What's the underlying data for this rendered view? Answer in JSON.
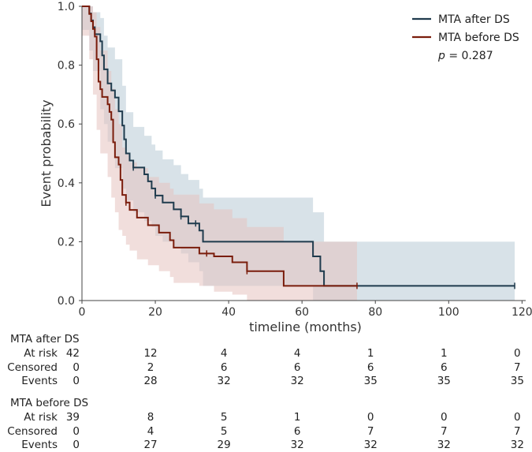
{
  "chart_data": {
    "type": "line",
    "subtype": "kaplan-meier",
    "title": "",
    "xlabel": "timeline (months)",
    "ylabel": "Event probability",
    "xlim": [
      0,
      121
    ],
    "ylim": [
      0,
      1.0
    ],
    "xticks": [
      0,
      20,
      40,
      60,
      80,
      100,
      120
    ],
    "yticks": [
      0.0,
      0.2,
      0.4,
      0.6,
      0.8,
      1.0
    ],
    "xtick_labels": [
      "0",
      "20",
      "40",
      "60",
      "80",
      "100",
      "120"
    ],
    "ytick_labels": [
      "0.0",
      "0.2",
      "0.4",
      "0.6",
      "0.8",
      "1.0"
    ],
    "legend_position": "top-right",
    "pvalue": {
      "label": "p",
      "text": " = 0.287"
    },
    "series": [
      {
        "name": "MTA after DS",
        "color": "#1f3b4d",
        "band_color": "#b8cbd6",
        "steps": [
          [
            0,
            1.0
          ],
          [
            2,
            0.976
          ],
          [
            2.5,
            0.952
          ],
          [
            3,
            0.929
          ],
          [
            3.5,
            0.905
          ],
          [
            5,
            0.881
          ],
          [
            5.5,
            0.833
          ],
          [
            6,
            0.786
          ],
          [
            7,
            0.738
          ],
          [
            8,
            0.714
          ],
          [
            9,
            0.69
          ],
          [
            10,
            0.643
          ],
          [
            11,
            0.595
          ],
          [
            11.5,
            0.548
          ],
          [
            12,
            0.5
          ],
          [
            13,
            0.476
          ],
          [
            14,
            0.452
          ],
          [
            17,
            0.429
          ],
          [
            18,
            0.405
          ],
          [
            19,
            0.381
          ],
          [
            20,
            0.357
          ],
          [
            22,
            0.333
          ],
          [
            25,
            0.31
          ],
          [
            27,
            0.286
          ],
          [
            29,
            0.262
          ],
          [
            32,
            0.238
          ],
          [
            33,
            0.2
          ],
          [
            63,
            0.15
          ],
          [
            65,
            0.1
          ],
          [
            66,
            0.05
          ],
          [
            118,
            0.05
          ]
        ],
        "lower": [
          [
            0,
            1.0
          ],
          [
            2,
            0.92
          ],
          [
            3,
            0.85
          ],
          [
            5,
            0.78
          ],
          [
            6,
            0.65
          ],
          [
            7,
            0.6
          ],
          [
            9,
            0.54
          ],
          [
            11,
            0.45
          ],
          [
            12,
            0.38
          ],
          [
            14,
            0.34
          ],
          [
            17,
            0.3
          ],
          [
            19,
            0.27
          ],
          [
            20,
            0.25
          ],
          [
            22,
            0.22
          ],
          [
            25,
            0.2
          ],
          [
            27,
            0.18
          ],
          [
            29,
            0.16
          ],
          [
            32,
            0.13
          ],
          [
            33,
            0.1
          ],
          [
            63,
            0.05
          ],
          [
            66,
            0.0
          ],
          [
            118,
            0.0
          ]
        ],
        "upper": [
          [
            0,
            1.0
          ],
          [
            2,
            1.0
          ],
          [
            3,
            0.98
          ],
          [
            5,
            0.96
          ],
          [
            6,
            0.9
          ],
          [
            7,
            0.86
          ],
          [
            9,
            0.82
          ],
          [
            11,
            0.73
          ],
          [
            12,
            0.64
          ],
          [
            14,
            0.59
          ],
          [
            17,
            0.56
          ],
          [
            19,
            0.53
          ],
          [
            20,
            0.51
          ],
          [
            22,
            0.48
          ],
          [
            25,
            0.46
          ],
          [
            27,
            0.43
          ],
          [
            29,
            0.41
          ],
          [
            32,
            0.38
          ],
          [
            33,
            0.35
          ],
          [
            63,
            0.3
          ],
          [
            66,
            0.2
          ],
          [
            118,
            0.2
          ]
        ],
        "censored_x": [
          14,
          20,
          27,
          31,
          118
        ]
      },
      {
        "name": "MTA before DS",
        "color": "#7a1d0c",
        "band_color": "#e6c3bf",
        "steps": [
          [
            0,
            1.0
          ],
          [
            2,
            0.974
          ],
          [
            2.5,
            0.949
          ],
          [
            3,
            0.923
          ],
          [
            3.5,
            0.897
          ],
          [
            4,
            0.82
          ],
          [
            4.5,
            0.744
          ],
          [
            5,
            0.718
          ],
          [
            5.5,
            0.692
          ],
          [
            7,
            0.667
          ],
          [
            7.5,
            0.641
          ],
          [
            8,
            0.615
          ],
          [
            8.5,
            0.538
          ],
          [
            9,
            0.487
          ],
          [
            10,
            0.462
          ],
          [
            10.5,
            0.41
          ],
          [
            11,
            0.359
          ],
          [
            12,
            0.333
          ],
          [
            13,
            0.308
          ],
          [
            15,
            0.282
          ],
          [
            18,
            0.256
          ],
          [
            21,
            0.231
          ],
          [
            24,
            0.205
          ],
          [
            25,
            0.18
          ],
          [
            32,
            0.16
          ],
          [
            36,
            0.15
          ],
          [
            41,
            0.13
          ],
          [
            45,
            0.1
          ],
          [
            55,
            0.05
          ],
          [
            75,
            0.05
          ]
        ],
        "lower": [
          [
            0,
            1.0
          ],
          [
            2,
            0.9
          ],
          [
            3,
            0.82
          ],
          [
            4,
            0.7
          ],
          [
            5,
            0.58
          ],
          [
            7,
            0.5
          ],
          [
            8,
            0.42
          ],
          [
            9,
            0.35
          ],
          [
            10,
            0.3
          ],
          [
            11,
            0.24
          ],
          [
            12,
            0.22
          ],
          [
            13,
            0.19
          ],
          [
            15,
            0.17
          ],
          [
            18,
            0.14
          ],
          [
            21,
            0.12
          ],
          [
            24,
            0.1
          ],
          [
            25,
            0.08
          ],
          [
            32,
            0.06
          ],
          [
            36,
            0.05
          ],
          [
            41,
            0.03
          ],
          [
            45,
            0.02
          ],
          [
            55,
            0.0
          ],
          [
            75,
            0.0
          ]
        ],
        "upper": [
          [
            0,
            1.0
          ],
          [
            2,
            1.0
          ],
          [
            3,
            0.98
          ],
          [
            4,
            0.93
          ],
          [
            5,
            0.85
          ],
          [
            7,
            0.78
          ],
          [
            8,
            0.72
          ],
          [
            9,
            0.65
          ],
          [
            10,
            0.6
          ],
          [
            11,
            0.52
          ],
          [
            12,
            0.5
          ],
          [
            13,
            0.47
          ],
          [
            15,
            0.45
          ],
          [
            18,
            0.42
          ],
          [
            21,
            0.4
          ],
          [
            24,
            0.38
          ],
          [
            25,
            0.36
          ],
          [
            32,
            0.33
          ],
          [
            36,
            0.31
          ],
          [
            41,
            0.28
          ],
          [
            45,
            0.25
          ],
          [
            55,
            0.2
          ],
          [
            75,
            0.2
          ]
        ],
        "censored_x": [
          12,
          34,
          45,
          75
        ]
      }
    ]
  },
  "risk_table": {
    "time_points": [
      0,
      20,
      40,
      60,
      80,
      100,
      120
    ],
    "groups": [
      {
        "title": "MTA after DS",
        "rows": [
          {
            "label": "At risk",
            "values": [
              "42",
              "12",
              "4",
              "4",
              "1",
              "1",
              "0"
            ]
          },
          {
            "label": "Censored",
            "values": [
              "0",
              "2",
              "6",
              "6",
              "6",
              "6",
              "7"
            ]
          },
          {
            "label": "Events",
            "values": [
              "0",
              "28",
              "32",
              "32",
              "35",
              "35",
              "35"
            ]
          }
        ]
      },
      {
        "title": "MTA before DS",
        "rows": [
          {
            "label": "At risk",
            "values": [
              "39",
              "8",
              "5",
              "1",
              "0",
              "0",
              "0"
            ]
          },
          {
            "label": "Censored",
            "values": [
              "0",
              "4",
              "5",
              "6",
              "7",
              "7",
              "7"
            ]
          },
          {
            "label": "Events",
            "values": [
              "0",
              "27",
              "29",
              "32",
              "32",
              "32",
              "32"
            ]
          }
        ]
      }
    ]
  }
}
